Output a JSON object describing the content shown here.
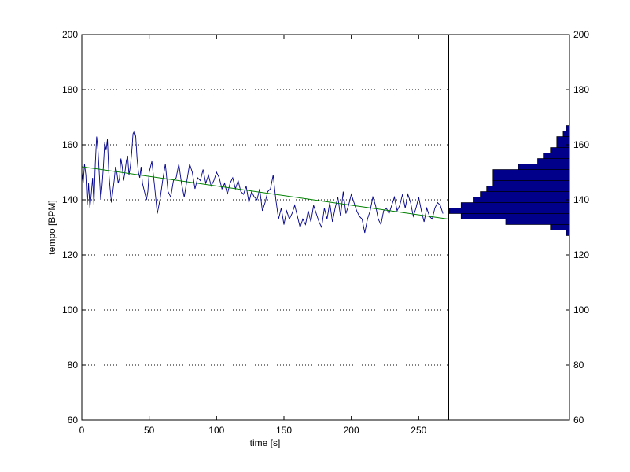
{
  "chart_data": {
    "type": "line",
    "xlabel": "time [s]",
    "ylabel": "tempo [BPM]",
    "xlim": [
      0,
      272
    ],
    "ylim": [
      60,
      200
    ],
    "xticks": [
      0,
      50,
      100,
      150,
      200,
      250
    ],
    "yticks": [
      60,
      80,
      100,
      120,
      140,
      160,
      180,
      200
    ],
    "grid": "horizontal dotted",
    "series": [
      {
        "kind": "line",
        "color": "#00008b",
        "x": [
          0,
          1,
          2,
          3,
          4,
          5,
          6,
          7,
          8,
          9,
          10,
          11,
          12,
          13,
          14,
          15,
          16,
          17,
          18,
          19,
          20,
          21,
          22,
          23,
          24,
          25,
          26,
          27,
          28,
          29,
          30,
          31,
          32,
          33,
          34,
          35,
          36,
          37,
          38,
          39,
          40,
          41,
          42,
          43,
          44,
          45,
          46,
          47,
          48,
          49,
          50,
          52,
          54,
          56,
          58,
          60,
          62,
          64,
          66,
          68,
          70,
          72,
          74,
          76,
          78,
          80,
          82,
          84,
          86,
          88,
          90,
          92,
          94,
          96,
          98,
          100,
          102,
          104,
          106,
          108,
          110,
          112,
          114,
          116,
          118,
          120,
          122,
          124,
          126,
          128,
          130,
          132,
          134,
          136,
          138,
          140,
          142,
          144,
          146,
          148,
          150,
          152,
          154,
          156,
          158,
          160,
          162,
          164,
          166,
          168,
          170,
          172,
          174,
          176,
          178,
          180,
          182,
          184,
          186,
          188,
          190,
          192,
          194,
          196,
          198,
          200,
          202,
          204,
          206,
          208,
          210,
          212,
          214,
          216,
          218,
          220,
          222,
          224,
          226,
          228,
          230,
          232,
          234,
          236,
          238,
          240,
          242,
          244,
          246,
          248,
          250,
          252,
          254,
          256,
          258,
          260,
          262,
          264,
          266,
          268
        ],
        "y": [
          150,
          146,
          153,
          149,
          138,
          146,
          137,
          142,
          148,
          138,
          153,
          163,
          158,
          149,
          140,
          145,
          152,
          161,
          158,
          162,
          150,
          144,
          139,
          143,
          147,
          152,
          150,
          146,
          148,
          155,
          152,
          147,
          150,
          154,
          156,
          149,
          152,
          157,
          164,
          165,
          163,
          155,
          150,
          148,
          152,
          146,
          144,
          142,
          140,
          143,
          150,
          154,
          145,
          135,
          140,
          147,
          153,
          143,
          141,
          147,
          148,
          153,
          146,
          141,
          147,
          153,
          150,
          144,
          148,
          147,
          151,
          146,
          149,
          145,
          147,
          150,
          148,
          144,
          146,
          142,
          146,
          148,
          144,
          147,
          143,
          142,
          145,
          139,
          143,
          141,
          140,
          144,
          136,
          139,
          143,
          144,
          149,
          140,
          133,
          137,
          131,
          136,
          133,
          135,
          138,
          134,
          130,
          133,
          131,
          136,
          132,
          138,
          135,
          132,
          130,
          137,
          133,
          139,
          132,
          137,
          141,
          134,
          143,
          135,
          138,
          142,
          139,
          136,
          134,
          133,
          128,
          133,
          136,
          141,
          138,
          133,
          131,
          136,
          137,
          135,
          138,
          141,
          136,
          138,
          142,
          137,
          142,
          139,
          134,
          137,
          141,
          136,
          132,
          137,
          134,
          133,
          137,
          139,
          138,
          135
        ]
      },
      {
        "kind": "trend",
        "color": "#008000",
        "x": [
          0,
          272
        ],
        "y": [
          152,
          133
        ]
      }
    ]
  },
  "histogram": {
    "type": "bar",
    "orientation": "horizontal",
    "color": "#00008b",
    "ylim": [
      60,
      200
    ],
    "yticks": [
      60,
      80,
      100,
      120,
      140,
      160,
      180,
      200
    ],
    "bin_width": 2,
    "bins": [
      {
        "center": 128,
        "count": 0.5
      },
      {
        "center": 130,
        "count": 3
      },
      {
        "center": 132,
        "count": 10
      },
      {
        "center": 134,
        "count": 17
      },
      {
        "center": 136,
        "count": 19
      },
      {
        "center": 138,
        "count": 17
      },
      {
        "center": 140,
        "count": 15
      },
      {
        "center": 142,
        "count": 14
      },
      {
        "center": 144,
        "count": 13
      },
      {
        "center": 146,
        "count": 12
      },
      {
        "center": 148,
        "count": 12
      },
      {
        "center": 150,
        "count": 12
      },
      {
        "center": 152,
        "count": 8
      },
      {
        "center": 154,
        "count": 5
      },
      {
        "center": 156,
        "count": 4
      },
      {
        "center": 158,
        "count": 3
      },
      {
        "center": 160,
        "count": 2
      },
      {
        "center": 162,
        "count": 2
      },
      {
        "center": 164,
        "count": 1
      },
      {
        "center": 166,
        "count": 0.5
      }
    ],
    "xmax": 19
  }
}
